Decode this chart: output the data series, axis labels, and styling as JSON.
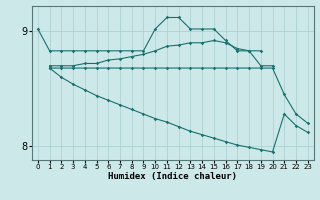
{
  "xlabel": "Humidex (Indice chaleur)",
  "background_color": "#cce8e8",
  "grid_color": "#aacece",
  "line_color": "#1a7070",
  "xlim": [
    -0.5,
    23.5
  ],
  "ylim": [
    7.88,
    9.22
  ],
  "yticks": [
    8,
    9
  ],
  "xticks": [
    0,
    1,
    2,
    3,
    4,
    5,
    6,
    7,
    8,
    9,
    10,
    11,
    12,
    13,
    14,
    15,
    16,
    17,
    18,
    19,
    20,
    21,
    22,
    23
  ],
  "line1_x": [
    0,
    1,
    2,
    3,
    4,
    5,
    6,
    7,
    8,
    9,
    10,
    11,
    12,
    13,
    14,
    15,
    16,
    17,
    18,
    19
  ],
  "line1_y": [
    9.02,
    8.83,
    8.83,
    8.83,
    8.83,
    8.83,
    8.83,
    8.83,
    8.83,
    8.83,
    9.02,
    9.12,
    9.12,
    9.02,
    9.02,
    9.02,
    8.92,
    8.83,
    8.83,
    8.83
  ],
  "line2_x": [
    1,
    2,
    3,
    4,
    5,
    6,
    7,
    8,
    9,
    10,
    11,
    12,
    13,
    14,
    15,
    16,
    17,
    18,
    19,
    20
  ],
  "line2_y": [
    8.7,
    8.7,
    8.7,
    8.72,
    8.72,
    8.75,
    8.76,
    8.78,
    8.8,
    8.83,
    8.87,
    8.88,
    8.9,
    8.9,
    8.92,
    8.9,
    8.85,
    8.83,
    8.7,
    8.7
  ],
  "line3_x": [
    1,
    2,
    3,
    4,
    5,
    6,
    7,
    8,
    9,
    10,
    11,
    12,
    13,
    14,
    15,
    16,
    17,
    18,
    19,
    20,
    21,
    22,
    23
  ],
  "line3_y": [
    8.68,
    8.68,
    8.68,
    8.68,
    8.68,
    8.68,
    8.68,
    8.68,
    8.68,
    8.68,
    8.68,
    8.68,
    8.68,
    8.68,
    8.68,
    8.68,
    8.68,
    8.68,
    8.68,
    8.68,
    8.45,
    8.28,
    8.2
  ],
  "line4_x": [
    1,
    2,
    3,
    4,
    5,
    6,
    7,
    8,
    9,
    10,
    11,
    12,
    13,
    14,
    15,
    16,
    17,
    18,
    19,
    20,
    21,
    22,
    23
  ],
  "line4_y": [
    8.68,
    8.6,
    8.54,
    8.49,
    8.44,
    8.4,
    8.36,
    8.32,
    8.28,
    8.24,
    8.21,
    8.17,
    8.13,
    8.1,
    8.07,
    8.04,
    8.01,
    7.99,
    7.97,
    7.95,
    8.28,
    8.18,
    8.12
  ]
}
